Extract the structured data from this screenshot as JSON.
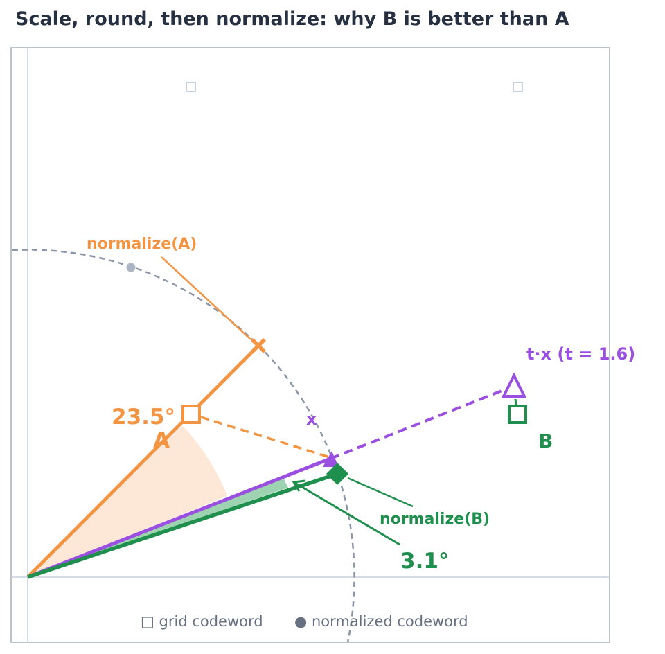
{
  "title": "Scale, round, then normalize: why B is better than A",
  "labels": {
    "normalize_a": "normalize(A)",
    "normalize_b": "normalize(B)",
    "point_a": "A",
    "point_b": "B",
    "vector_x": "x",
    "scaled_x": "t·x  (t = 1.6)",
    "angle_a": "23.5°",
    "angle_b": "3.1°"
  },
  "legend": {
    "grid_codeword": "□ grid codeword",
    "normalized_codeword": "● normalized codeword"
  },
  "colors": {
    "orange": "#f39443",
    "purple": "#9a4fe0",
    "green": "#1f8f4e",
    "gray": "#8a96a8",
    "title": "#263041",
    "legend_text": "#667080"
  }
}
